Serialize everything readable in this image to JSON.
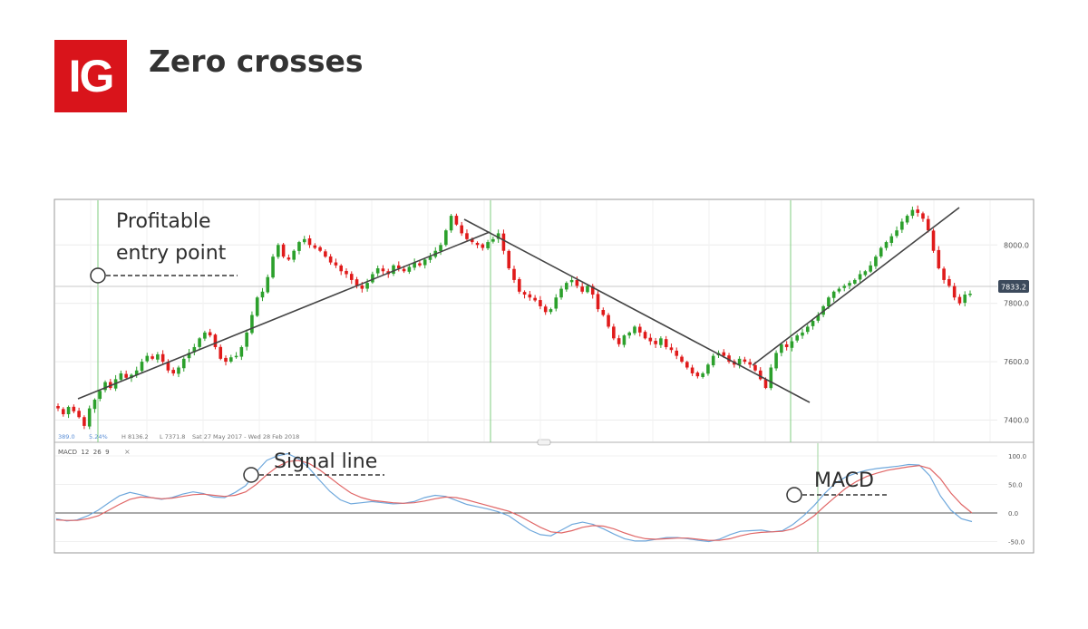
{
  "header": {
    "logo_text": "IG",
    "title": "Zero crosses"
  },
  "colors": {
    "brand_red": "#d9141b",
    "candle_up": "#2ca02c",
    "candle_down": "#e01b1b",
    "macd_line": "#6fa8dc",
    "signal_line": "#e06666",
    "green_marker": "#7fce7f"
  },
  "annotations": {
    "entry": "Profitable\nentry point",
    "signal": "Signal line",
    "macd": "MACD"
  },
  "price_panel": {
    "info": {
      "value": "389.0",
      "pct": "5.24%",
      "high": "H 8136.2",
      "low": "L 7371.8",
      "range": "Sat 27 May 2017 - Wed 28 Feb 2018"
    },
    "current_price": "7833.2"
  },
  "macd_panel": {
    "label": "MACD  12  26  9",
    "close": "×"
  },
  "chart_data": [
    {
      "type": "candlestick",
      "yticks": [
        "8000.0",
        "7800.0",
        "7600.0",
        "7400.0"
      ],
      "ylim": [
        7330,
        8150
      ],
      "closes": [
        7440,
        7420,
        7445,
        7430,
        7410,
        7380,
        7440,
        7470,
        7500,
        7530,
        7510,
        7540,
        7560,
        7545,
        7555,
        7570,
        7600,
        7620,
        7610,
        7625,
        7600,
        7570,
        7560,
        7580,
        7610,
        7630,
        7650,
        7680,
        7700,
        7690,
        7650,
        7610,
        7600,
        7615,
        7620,
        7650,
        7700,
        7760,
        7820,
        7840,
        7890,
        7960,
        8000,
        7960,
        7950,
        7980,
        8010,
        8020,
        8000,
        7990,
        7980,
        7960,
        7940,
        7930,
        7910,
        7900,
        7880,
        7860,
        7850,
        7870,
        7900,
        7920,
        7910,
        7900,
        7930,
        7920,
        7910,
        7925,
        7940,
        7930,
        7950,
        7960,
        7980,
        8000,
        8050,
        8100,
        8070,
        8040,
        8020,
        8010,
        8000,
        7990,
        8010,
        8020,
        8040,
        7980,
        7920,
        7880,
        7840,
        7830,
        7820,
        7810,
        7790,
        7770,
        7780,
        7820,
        7850,
        7870,
        7880,
        7860,
        7840,
        7860,
        7830,
        7780,
        7760,
        7720,
        7680,
        7660,
        7690,
        7700,
        7720,
        7700,
        7680,
        7670,
        7660,
        7680,
        7650,
        7640,
        7620,
        7600,
        7580,
        7560,
        7550,
        7560,
        7590,
        7620,
        7630,
        7620,
        7600,
        7590,
        7610,
        7600,
        7590,
        7570,
        7540,
        7510,
        7580,
        7630,
        7660,
        7650,
        7670,
        7690,
        7700,
        7720,
        7740,
        7760,
        7790,
        7820,
        7840,
        7850,
        7860,
        7870,
        7880,
        7900,
        7910,
        7930,
        7960,
        7990,
        8010,
        8030,
        8050,
        8080,
        8100,
        8120,
        8110,
        8090,
        8050,
        7980,
        7920,
        7880,
        7860,
        7820,
        7800,
        7830,
        7833
      ]
    },
    {
      "type": "line",
      "series": [
        {
          "name": "MACD",
          "values": [
            -10,
            -14,
            -12,
            -5,
            5,
            18,
            30,
            36,
            32,
            27,
            24,
            27,
            33,
            37,
            34,
            28,
            27,
            36,
            48,
            72,
            92,
            100,
            104,
            95,
            79,
            58,
            38,
            23,
            16,
            18,
            20,
            18,
            16,
            17,
            20,
            27,
            31,
            29,
            22,
            15,
            11,
            7,
            2,
            -5,
            -18,
            -30,
            -38,
            -40,
            -30,
            -20,
            -16,
            -20,
            -28,
            -37,
            -45,
            -49,
            -49,
            -46,
            -43,
            -43,
            -45,
            -48,
            -50,
            -46,
            -38,
            -32,
            -31,
            -30,
            -33,
            -31,
            -20,
            -5,
            13,
            34,
            52,
            63,
            70,
            75,
            78,
            80,
            82,
            85,
            84,
            65,
            30,
            5,
            -10,
            -15
          ]
        },
        {
          "name": "Signal line",
          "values": [
            -12,
            -13,
            -13,
            -10,
            -5,
            5,
            15,
            24,
            28,
            27,
            25,
            26,
            29,
            32,
            33,
            31,
            29,
            31,
            37,
            50,
            67,
            81,
            90,
            92,
            87,
            76,
            62,
            48,
            35,
            27,
            22,
            20,
            18,
            17,
            18,
            21,
            25,
            28,
            27,
            23,
            18,
            13,
            8,
            3,
            -5,
            -15,
            -25,
            -33,
            -35,
            -31,
            -25,
            -22,
            -23,
            -28,
            -35,
            -41,
            -45,
            -46,
            -45,
            -44,
            -44,
            -46,
            -48,
            -48,
            -45,
            -40,
            -36,
            -34,
            -33,
            -32,
            -28,
            -18,
            -5,
            12,
            28,
            43,
            55,
            64,
            70,
            75,
            78,
            81,
            83,
            78,
            60,
            35,
            15,
            0
          ]
        }
      ],
      "yticks": [
        "100.0",
        "50.0",
        "0.0",
        "-50.0"
      ],
      "ylim": [
        -70,
        120
      ]
    }
  ]
}
